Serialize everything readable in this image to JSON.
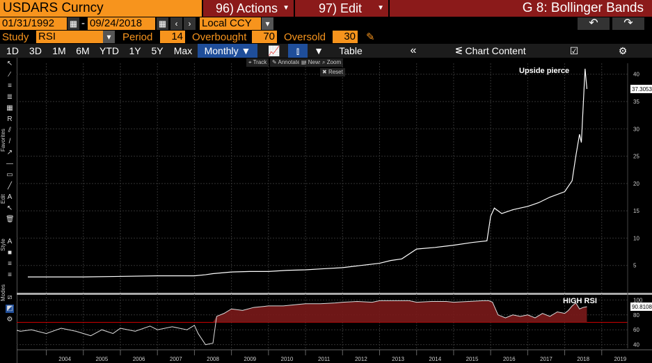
{
  "header": {
    "ticker": "USDARS Curncy",
    "actions": "96) Actions",
    "edit": "97) Edit",
    "title": "G 8: Bollinger Bands"
  },
  "dates": {
    "start": "01/31/1992",
    "dash": "-",
    "end": "09/24/2018",
    "currency": "Local CCY"
  },
  "study": {
    "label": "Study",
    "value": "RSI",
    "period_label": "Period",
    "period": "14",
    "overbought_label": "Overbought",
    "overbought": "70",
    "oversold_label": "Oversold",
    "oversold": "30"
  },
  "tabs": [
    "1D",
    "3D",
    "1M",
    "6M",
    "YTD",
    "1Y",
    "5Y",
    "Max"
  ],
  "period_select": "Monthly ▼",
  "table_label": "Table",
  "chart_content_label": "Chart Content",
  "mini_buttons": {
    "track": "Track",
    "annotate": "Annotate",
    "news": "News",
    "zoom": "Zoom",
    "reset": "Reset"
  },
  "side_labels": {
    "favorites": "Favorites",
    "edit": "Edit",
    "style": "Style",
    "modes": "Modes"
  },
  "colors": {
    "orange": "#f7941d",
    "dark_red": "#8b1a1a",
    "blue_tab": "#1f4e9a",
    "rsi_fill": "#7a1a1a",
    "rsi_line": "#d94040"
  },
  "chart_data": [
    {
      "type": "line",
      "title": "",
      "x_ticks": [
        "2004",
        "2005",
        "2006",
        "2007",
        "2008",
        "2009",
        "2010",
        "2011",
        "2012",
        "2013",
        "2014",
        "2015",
        "2016",
        "2017",
        "2018",
        "2019"
      ],
      "y_ticks": [
        5,
        10,
        15,
        20,
        25,
        30,
        35,
        40
      ],
      "ylim": [
        0,
        42
      ],
      "last_value_label": "37.3053",
      "annotation": "Upside pierce",
      "series": [
        {
          "x": [
            2003.5,
            2004,
            2005,
            2006,
            2007,
            2008,
            2008.3,
            2008.5,
            2009,
            2009.5,
            2010,
            2010.5,
            2011,
            2011.5,
            2012,
            2012.5,
            2013,
            2013.3,
            2013.6,
            2014,
            2014.5,
            2015,
            2015.5,
            2015.9,
            2016,
            2016.1,
            2016.3,
            2016.6,
            2017,
            2017.3,
            2017.6,
            2018,
            2018.2,
            2018.3,
            2018.4,
            2018.45,
            2018.55,
            2018.6
          ],
          "values": [
            2.9,
            2.9,
            2.9,
            3.0,
            3.1,
            3.1,
            3.3,
            3.5,
            3.8,
            3.9,
            3.9,
            4.1,
            4.2,
            4.4,
            4.6,
            5.0,
            5.4,
            5.9,
            6.2,
            8.0,
            8.3,
            8.7,
            9.2,
            9.5,
            14.0,
            15.5,
            14.5,
            15.2,
            15.8,
            16.5,
            17.5,
            18.5,
            20.5,
            25.0,
            29.0,
            27.5,
            41.0,
            37.3
          ]
        }
      ]
    },
    {
      "type": "area",
      "title": "",
      "x_ticks": [
        "2004",
        "2005",
        "2006",
        "2007",
        "2008",
        "2009",
        "2010",
        "2011",
        "2012",
        "2013",
        "2014",
        "2015",
        "2016",
        "2017",
        "2018",
        "2019"
      ],
      "y_ticks": [
        40,
        60,
        80,
        100
      ],
      "ylim": [
        35,
        105
      ],
      "reference_line": 70,
      "last_value_label": "90.8108",
      "annotation": "HIGH RSI",
      "series": [
        {
          "x": [
            2003.0,
            2003.3,
            2003.6,
            2004,
            2004.4,
            2004.8,
            2005.2,
            2005.5,
            2005.8,
            2006,
            2006.4,
            2006.8,
            2007,
            2007.4,
            2007.8,
            2008,
            2008.1,
            2008.3,
            2008.5,
            2008.6,
            2008.8,
            2009,
            2009.3,
            2009.6,
            2010,
            2010.4,
            2010.8,
            2011,
            2011.4,
            2011.8,
            2012,
            2012.4,
            2012.8,
            2013,
            2013.4,
            2013.8,
            2014,
            2014.4,
            2014.8,
            2015,
            2015.4,
            2015.8,
            2015.95,
            2016.05,
            2016.2,
            2016.4,
            2016.6,
            2016.8,
            2017,
            2017.2,
            2017.4,
            2017.6,
            2017.8,
            2018,
            2018.1,
            2018.2,
            2018.3,
            2018.4,
            2018.5,
            2018.6
          ],
          "values": [
            62,
            58,
            60,
            55,
            62,
            58,
            52,
            60,
            55,
            62,
            58,
            65,
            60,
            64,
            60,
            66,
            55,
            40,
            42,
            78,
            82,
            88,
            86,
            90,
            92,
            92,
            94,
            95,
            95,
            96,
            97,
            98,
            97,
            99,
            99,
            99,
            97,
            98,
            98,
            97,
            98,
            99,
            99,
            97,
            80,
            76,
            80,
            78,
            80,
            76,
            82,
            78,
            84,
            82,
            86,
            92,
            96,
            88,
            90,
            91
          ]
        }
      ]
    }
  ]
}
